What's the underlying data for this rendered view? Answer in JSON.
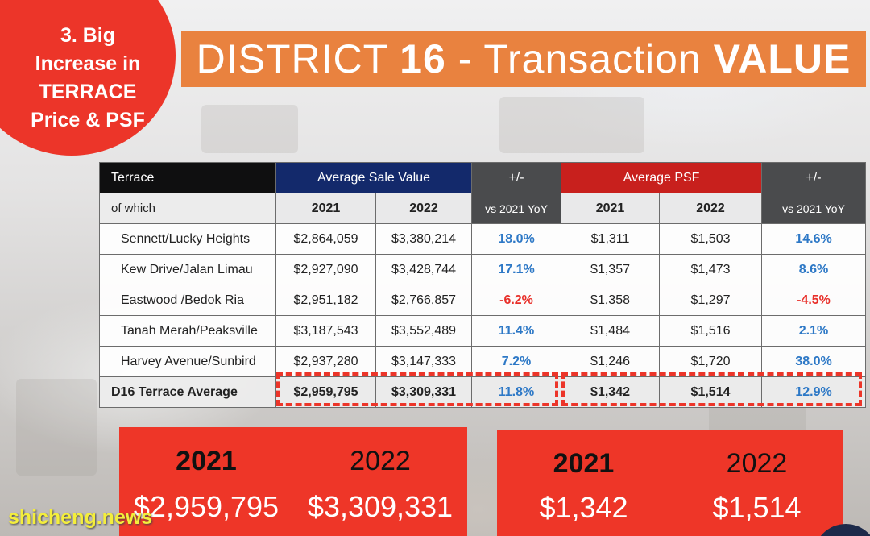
{
  "badge": {
    "text": "3. Big Increase in TERRACE Price & PSF"
  },
  "banner": {
    "part1": "DISTRICT ",
    "part2": "16",
    "part3": " - Transaction ",
    "part4": "VALUE"
  },
  "colors": {
    "badge": "#ec3529",
    "banner": "#e9823f",
    "navy": "#13296b",
    "red_header": "#c8201d",
    "positive": "#2d78c6",
    "negative": "#e8302a"
  },
  "table": {
    "header": {
      "terrace": "Terrace",
      "avg_sale": "Average Sale Value",
      "change1": "+/-",
      "avg_psf": "Average PSF",
      "change2": "+/-"
    },
    "subheader": {
      "of_which": "of which",
      "y2021a": "2021",
      "y2022a": "2022",
      "yoy1": "vs 2021 YoY",
      "y2021b": "2021",
      "y2022b": "2022",
      "yoy2": "vs 2021 YoY"
    },
    "rows": [
      {
        "name": "Sennett/Lucky Heights",
        "sale2021": "$2,864,059",
        "sale2022": "$3,380,214",
        "sale_change": "18.0%",
        "psf2021": "$1,311",
        "psf2022": "$1,503",
        "psf_change": "14.6%"
      },
      {
        "name": "Kew Drive/Jalan Limau",
        "sale2021": "$2,927,090",
        "sale2022": "$3,428,744",
        "sale_change": "17.1%",
        "psf2021": "$1,357",
        "psf2022": "$1,473",
        "psf_change": "8.6%"
      },
      {
        "name": "Eastwood /Bedok Ria",
        "sale2021": "$2,951,182",
        "sale2022": "$2,766,857",
        "sale_change": "-6.2%",
        "psf2021": "$1,358",
        "psf2022": "$1,297",
        "psf_change": "-4.5%"
      },
      {
        "name": "Tanah Merah/Peaksville",
        "sale2021": "$3,187,543",
        "sale2022": "$3,552,489",
        "sale_change": "11.4%",
        "psf2021": "$1,484",
        "psf2022": "$1,516",
        "psf_change": "2.1%"
      },
      {
        "name": "Harvey Avenue/Sunbird",
        "sale2021": "$2,937,280",
        "sale2022": "$3,147,333",
        "sale_change": "7.2%",
        "psf2021": "$1,246",
        "psf2022": "$1,720",
        "psf_change": "38.0%"
      }
    ],
    "average": {
      "name": "D16 Terrace Average",
      "sale2021": "$2,959,795",
      "sale2022": "$3,309,331",
      "sale_change": "11.8%",
      "psf2021": "$1,342",
      "psf2022": "$1,514",
      "psf_change": "12.9%"
    }
  },
  "summary_sale": {
    "y1": "2021",
    "y2": "2022",
    "v1": "$2,959,795",
    "v2": "$3,309,331"
  },
  "summary_psf": {
    "y1": "2021",
    "y2": "2022",
    "v1": "$1,342",
    "v2": "$1,514"
  },
  "watermark": "shicheng.news"
}
